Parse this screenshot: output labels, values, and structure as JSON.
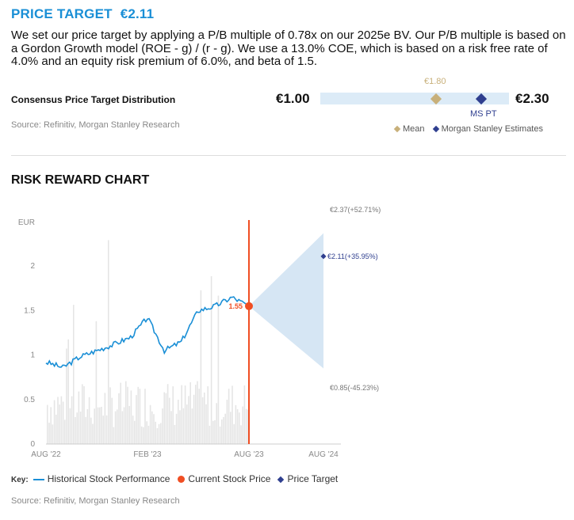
{
  "price_target": {
    "label": "PRICE TARGET",
    "value": "€2.11"
  },
  "paragraph": "We set our price target by applying a P/B multiple of 0.78x on our 2025e BV. Our P/B multiple is based on a Gordon Growth model (ROE - g) / (r - g). We use a 13.0% COE, which is based on a risk free rate of 4.0% and an equity risk premium of 6.0%, and beta of 1.5.",
  "consensus": {
    "label": "Consensus Price Target Distribution",
    "low": "€1.00",
    "high": "€2.30",
    "mean_label": "€1.80",
    "ms_label": "MS PT",
    "low_value": 1.0,
    "high_value": 2.3,
    "mean_value": 1.8,
    "ms_value": 2.11,
    "legend_mean": "Mean",
    "legend_ms": "Morgan Stanley Estimates",
    "colors": {
      "bar": "#dcebf7",
      "mean": "#c8b07a",
      "ms": "#2f3f8f"
    },
    "source": "Source: Refinitiv, Morgan Stanley Research"
  },
  "risk_reward_title": "RISK REWARD CHART",
  "chart_data": {
    "type": "line",
    "ylabel": "EUR",
    "ylim": [
      0,
      2.5
    ],
    "yticks": [
      "0",
      "0.5",
      "1",
      "1.5",
      "2"
    ],
    "ytick_values": [
      0,
      0.5,
      1,
      1.5,
      2
    ],
    "xticks": [
      "AUG '22",
      "FEB '23",
      "AUG '23",
      "AUG '24"
    ],
    "xtick_values": [
      "2022-08",
      "2023-02",
      "2023-08",
      "2024-08"
    ],
    "current_price": {
      "label": "1.55",
      "value": 1.55,
      "date": "2023-08"
    },
    "scenarios": [
      {
        "label": "€2.37(+52.71%)",
        "value": 2.37
      },
      {
        "label": "€2.11(+35.95%)",
        "value": 2.11
      },
      {
        "label": "€0.85(-45.23%)",
        "value": 0.85
      }
    ],
    "target_date": "2024-08",
    "series": [
      {
        "name": "Historical Stock Performance",
        "x": [
          "2022-08",
          "2022-09",
          "2022-10",
          "2022-11",
          "2022-12",
          "2023-01",
          "2023-02",
          "2023-03",
          "2023-04",
          "2023-05",
          "2023-06",
          "2023-07",
          "2023-08"
        ],
        "values": [
          0.92,
          0.86,
          0.98,
          1.05,
          1.12,
          1.2,
          1.42,
          1.05,
          1.15,
          1.5,
          1.55,
          1.65,
          1.55
        ]
      }
    ],
    "colors": {
      "line": "#1a8fd6",
      "current": "#f04e23",
      "target": "#2f3f8f",
      "cone": "#d6e6f4",
      "volume": "#e5e5e5",
      "vline": "#f04e23"
    }
  },
  "key": {
    "label": "Key:",
    "historical": "Historical Stock Performance",
    "current": "Current Stock Price",
    "target": "Price Target"
  },
  "source2": "Source: Refinitiv, Morgan Stanley Research"
}
